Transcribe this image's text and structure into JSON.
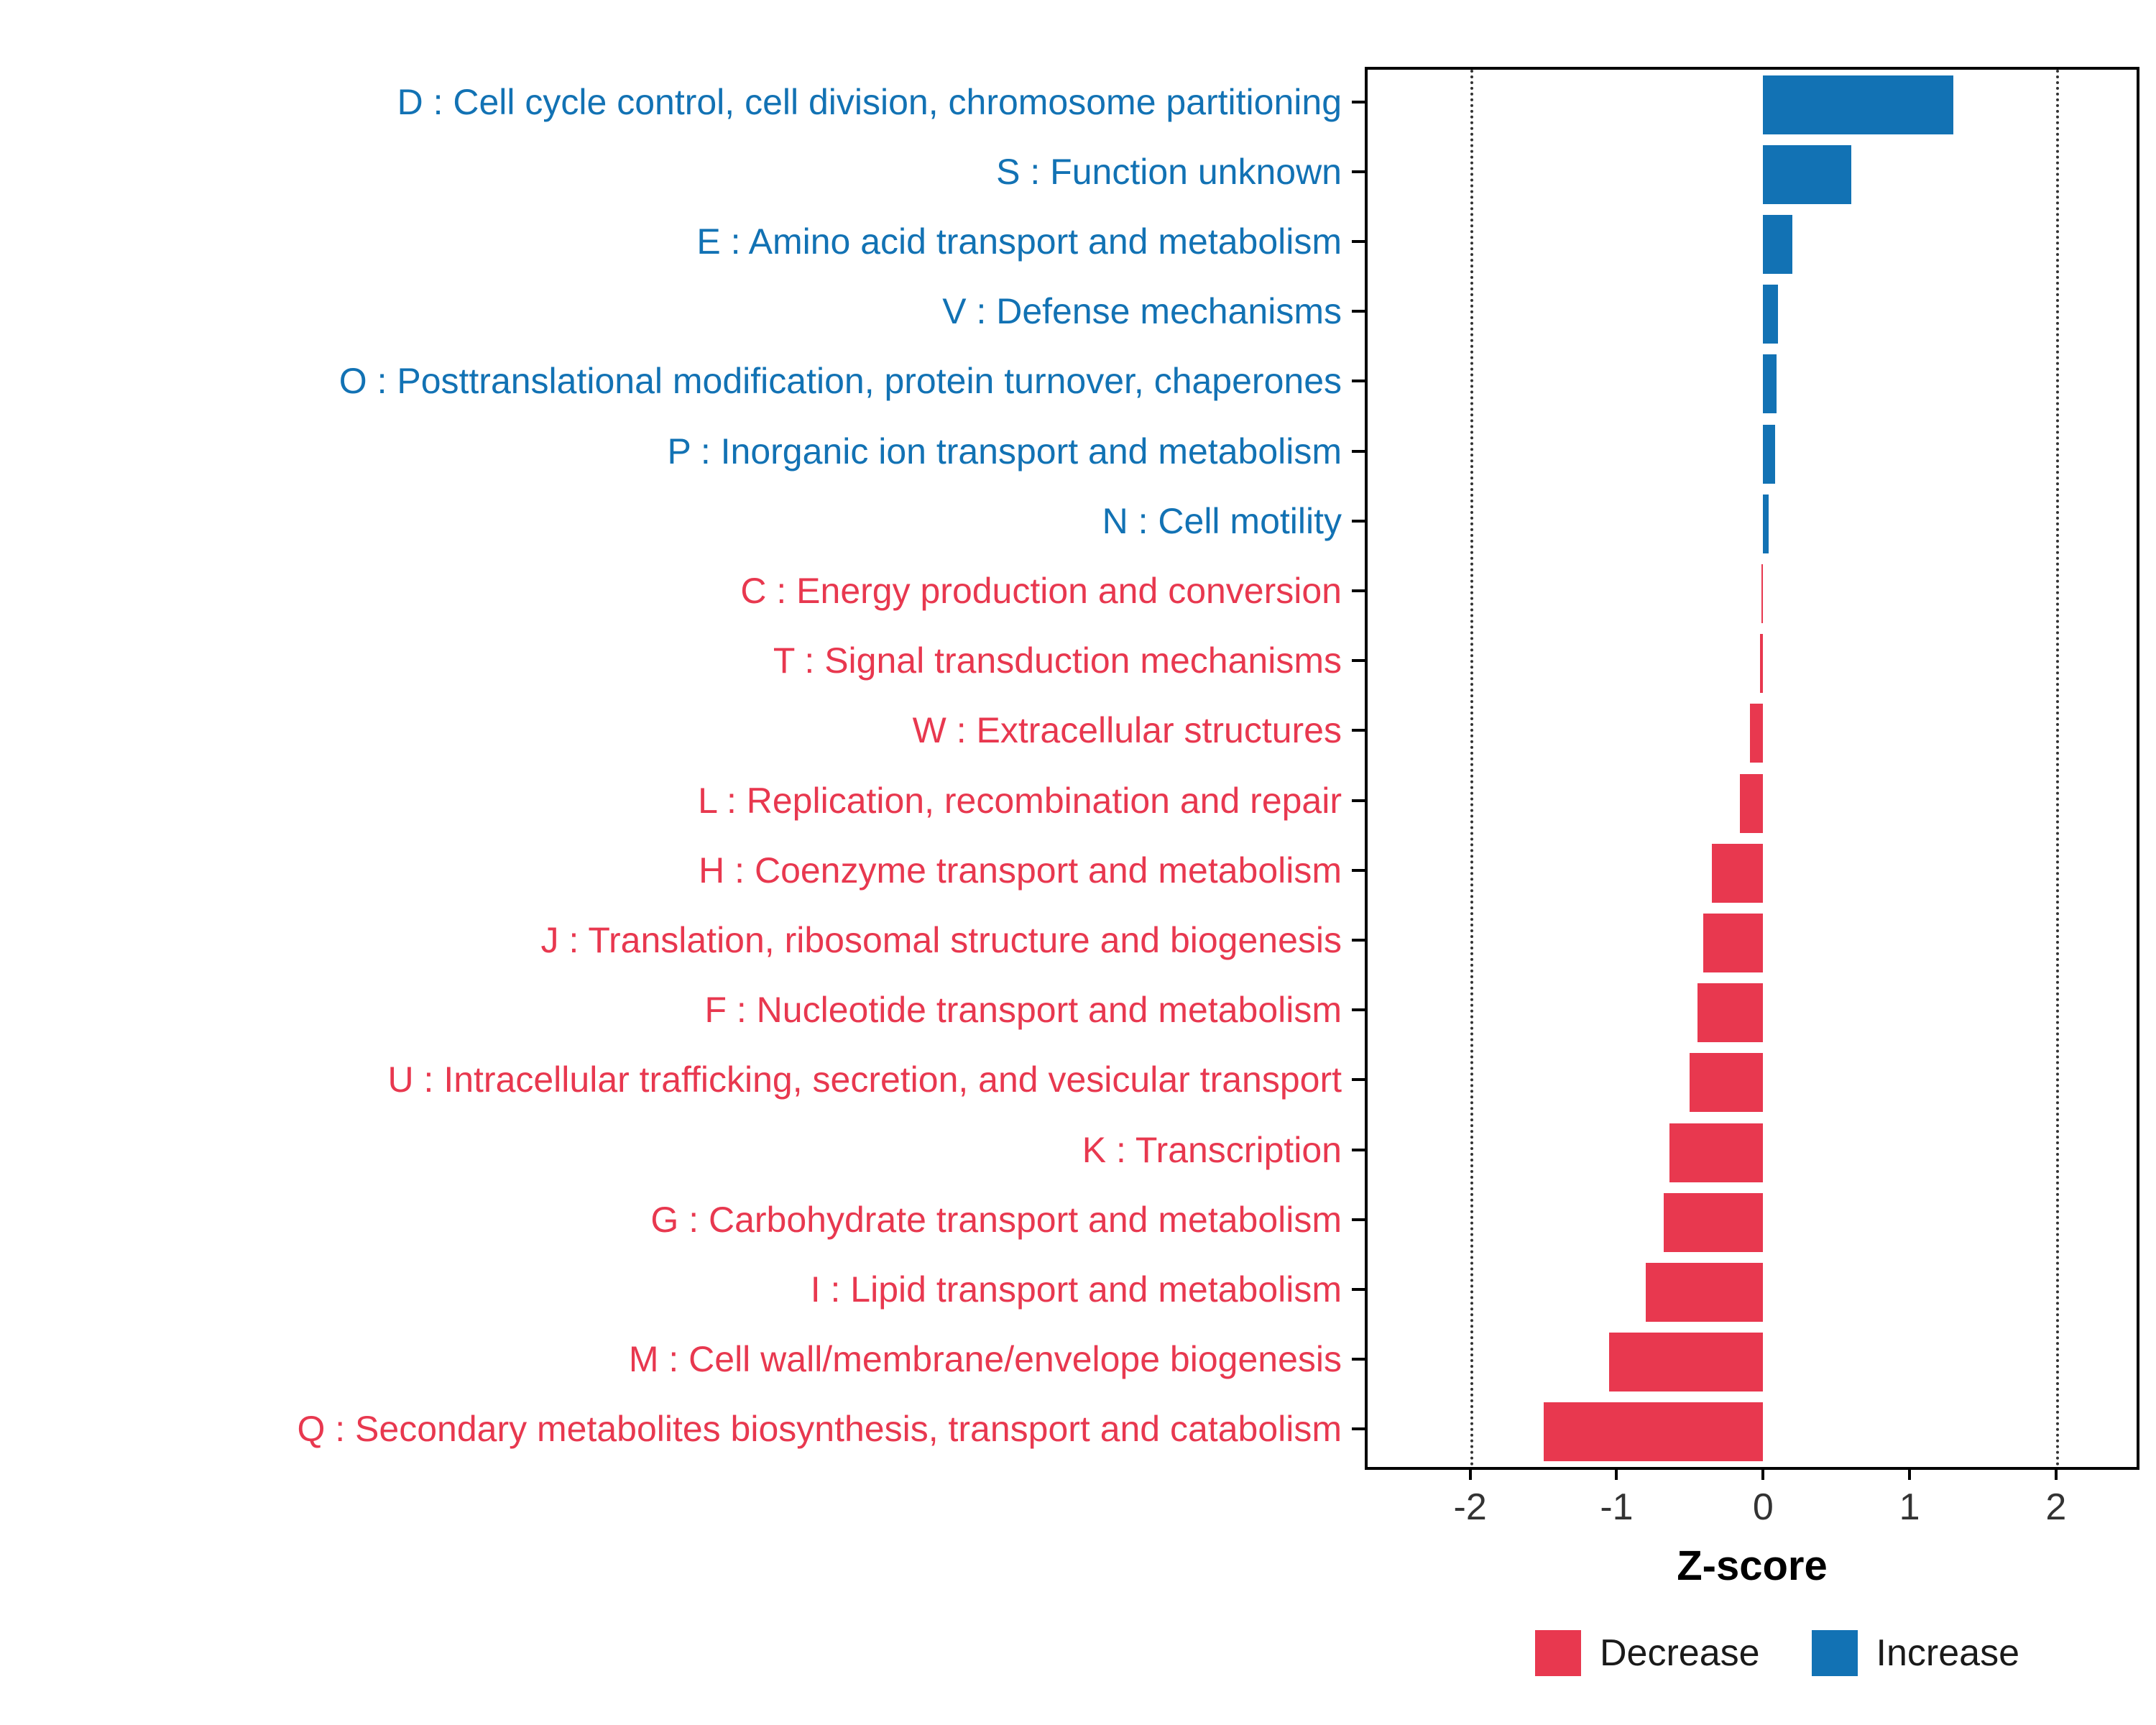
{
  "chart_data": {
    "type": "bar",
    "orientation": "horizontal",
    "title": "",
    "xlabel": "Z-score",
    "ylabel": "",
    "xlim": [
      -2.7,
      2.55
    ],
    "x_ticks": [
      -2,
      -1,
      0,
      1,
      2
    ],
    "threshold_lines": [
      -2,
      2
    ],
    "grid": false,
    "bar_width_fraction": 0.85,
    "colors": {
      "Increase": "#1272B4",
      "Decrease": "#E8384F"
    },
    "legend": {
      "position": "bottom-right",
      "entries": [
        {
          "label": "Decrease",
          "color_key": "Decrease"
        },
        {
          "label": "Increase",
          "color_key": "Increase"
        }
      ]
    },
    "items": [
      {
        "label": "D : Cell cycle control, cell division, chromosome partitioning",
        "value": 1.3,
        "group": "Increase"
      },
      {
        "label": "S : Function unknown",
        "value": 0.6,
        "group": "Increase"
      },
      {
        "label": "E : Amino acid transport and metabolism",
        "value": 0.2,
        "group": "Increase"
      },
      {
        "label": "V : Defense mechanisms",
        "value": 0.1,
        "group": "Increase"
      },
      {
        "label": "O : Posttranslational modification, protein turnover, chaperones",
        "value": 0.09,
        "group": "Increase"
      },
      {
        "label": "P : Inorganic ion transport and metabolism",
        "value": 0.08,
        "group": "Increase"
      },
      {
        "label": "N : Cell motility",
        "value": 0.04,
        "group": "Increase"
      },
      {
        "label": "C : Energy production and conversion",
        "value": -0.01,
        "group": "Decrease"
      },
      {
        "label": "T : Signal transduction mechanisms",
        "value": -0.02,
        "group": "Decrease"
      },
      {
        "label": "W : Extracellular structures",
        "value": -0.09,
        "group": "Decrease"
      },
      {
        "label": "L : Replication, recombination and repair",
        "value": -0.16,
        "group": "Decrease"
      },
      {
        "label": "H : Coenzyme transport and metabolism",
        "value": -0.35,
        "group": "Decrease"
      },
      {
        "label": "J : Translation, ribosomal structure and biogenesis",
        "value": -0.41,
        "group": "Decrease"
      },
      {
        "label": "F : Nucleotide transport and metabolism",
        "value": -0.45,
        "group": "Decrease"
      },
      {
        "label": "U : Intracellular trafficking, secretion, and vesicular transport",
        "value": -0.5,
        "group": "Decrease"
      },
      {
        "label": "K : Transcription",
        "value": -0.64,
        "group": "Decrease"
      },
      {
        "label": "G : Carbohydrate transport and metabolism",
        "value": -0.68,
        "group": "Decrease"
      },
      {
        "label": "I : Lipid transport and metabolism",
        "value": -0.8,
        "group": "Decrease"
      },
      {
        "label": "M : Cell wall/membrane/envelope biogenesis",
        "value": -1.05,
        "group": "Decrease"
      },
      {
        "label": "Q : Secondary metabolites biosynthesis, transport and catabolism",
        "value": -1.5,
        "group": "Decrease"
      }
    ]
  }
}
